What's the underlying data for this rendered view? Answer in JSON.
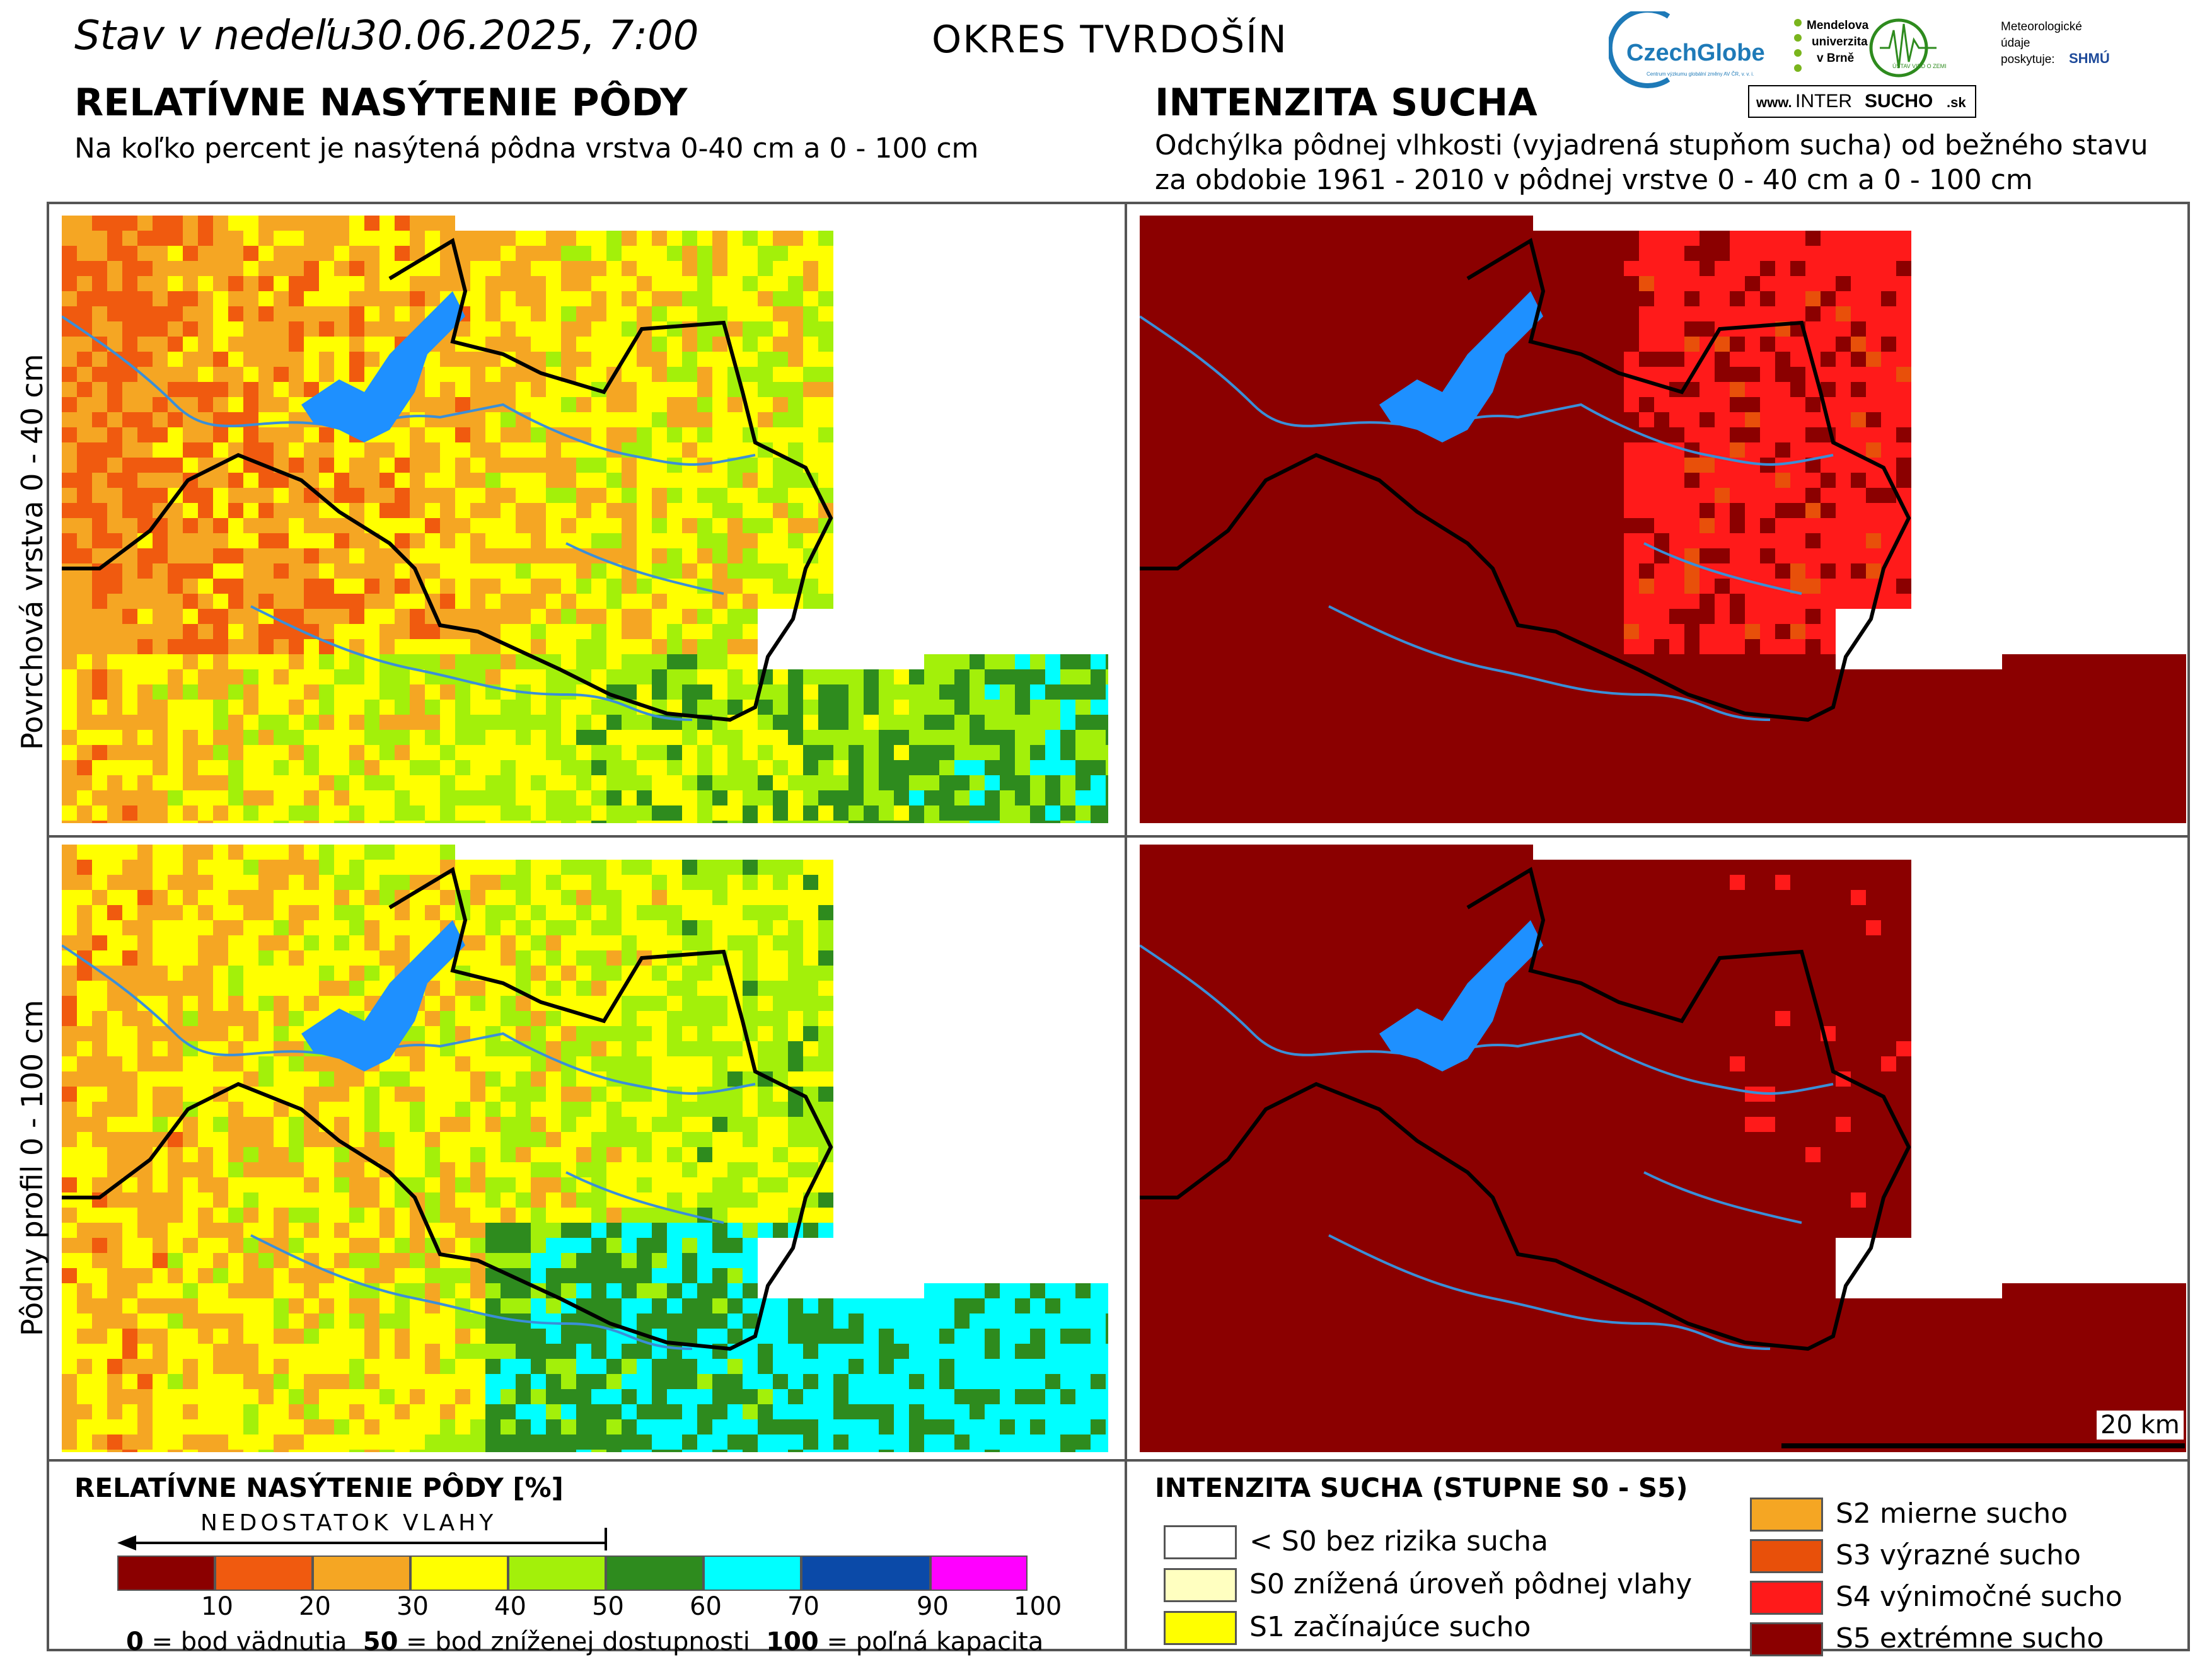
{
  "header": {
    "date_prefix": "Stav v nedeľu",
    "date_value": "30.06.2025, 7:00",
    "district": "OKRES  TVRDOŠÍN"
  },
  "left_section": {
    "title": "RELATÍVNE NASÝTENIE PÔDY",
    "subtitle": "Na koľko percent je nasýtená pôdna vrstva 0-40 cm a 0 - 100 cm"
  },
  "right_section": {
    "title": "INTENZITA SUCHA",
    "subtitle_line1": "Odchýlka pôdnej vlhkosti (vyjadrená stupňom sucha) od bežného stavu",
    "subtitle_line2": "za obdobie 1961 - 2010 v pôdnej vrstve 0 - 40 cm a 0 - 100 cm"
  },
  "logos": {
    "czechglobe": "CzechGlobe",
    "czechglobe_sub": "Centrum výzkumu globální změny AV ČR, v. v. i.",
    "mendel_line1": "Mendelova",
    "mendel_line2": "univerzita",
    "mendel_line3": "v Brně",
    "uvz": "ÚSTAV VIED O ZEMI",
    "meteo_line1": "Meteorologické",
    "meteo_line2": "údaje",
    "meteo_line3": "poskytuje:",
    "shmu": "SHMÚ",
    "site_prefix": "www.",
    "site_inter": "INTER",
    "site_sucho": "SUCHO",
    "site_suffix": ".sk"
  },
  "row_labels": {
    "top": "Povrchová vrstva 0 - 40 cm",
    "bottom": "Pôdny profil 0 - 100 cm"
  },
  "scale_bar": {
    "label": "20 km"
  },
  "legend_left": {
    "title": "RELATÍVNE NASÝTENIE PÔDY [%]",
    "arrow_label": "NEDOSTATOK VLAHY",
    "colors": [
      "#8b0000",
      "#f05a0f",
      "#f5a623",
      "#ffff00",
      "#a3f00a",
      "#2e8b1e",
      "#00ffff",
      "#0b4aa8",
      "#ff00ff"
    ],
    "ticks": [
      "10",
      "20",
      "30",
      "40",
      "50",
      "60",
      "70",
      "90",
      "100"
    ],
    "note_0_num": "0",
    "note_0_text": " = bod vädnutia",
    "note_50_num": "50",
    "note_50_text": " = bod zníženej dostupnosti",
    "note_100_num": "100",
    "note_100_text": " = poľná kapacita"
  },
  "legend_right": {
    "title": "INTENZITA SUCHA (STUPNE S0 - S5)",
    "items": [
      {
        "label": "< S0 bez rizika sucha",
        "color": "#ffffff"
      },
      {
        "label": "S0 znížená úroveň pôdnej vlahy",
        "color": "#ffffc0"
      },
      {
        "label": "S1 začínajúce sucho",
        "color": "#ffff00"
      },
      {
        "label": "S2 mierne sucho",
        "color": "#f5a623"
      },
      {
        "label": "S3 výrazné sucho",
        "color": "#e8500a"
      },
      {
        "label": "S4 výnimočné sucho",
        "color": "#ff1a1a"
      },
      {
        "label": "S5 extrémne sucho",
        "color": "#8b0000"
      }
    ]
  }
}
